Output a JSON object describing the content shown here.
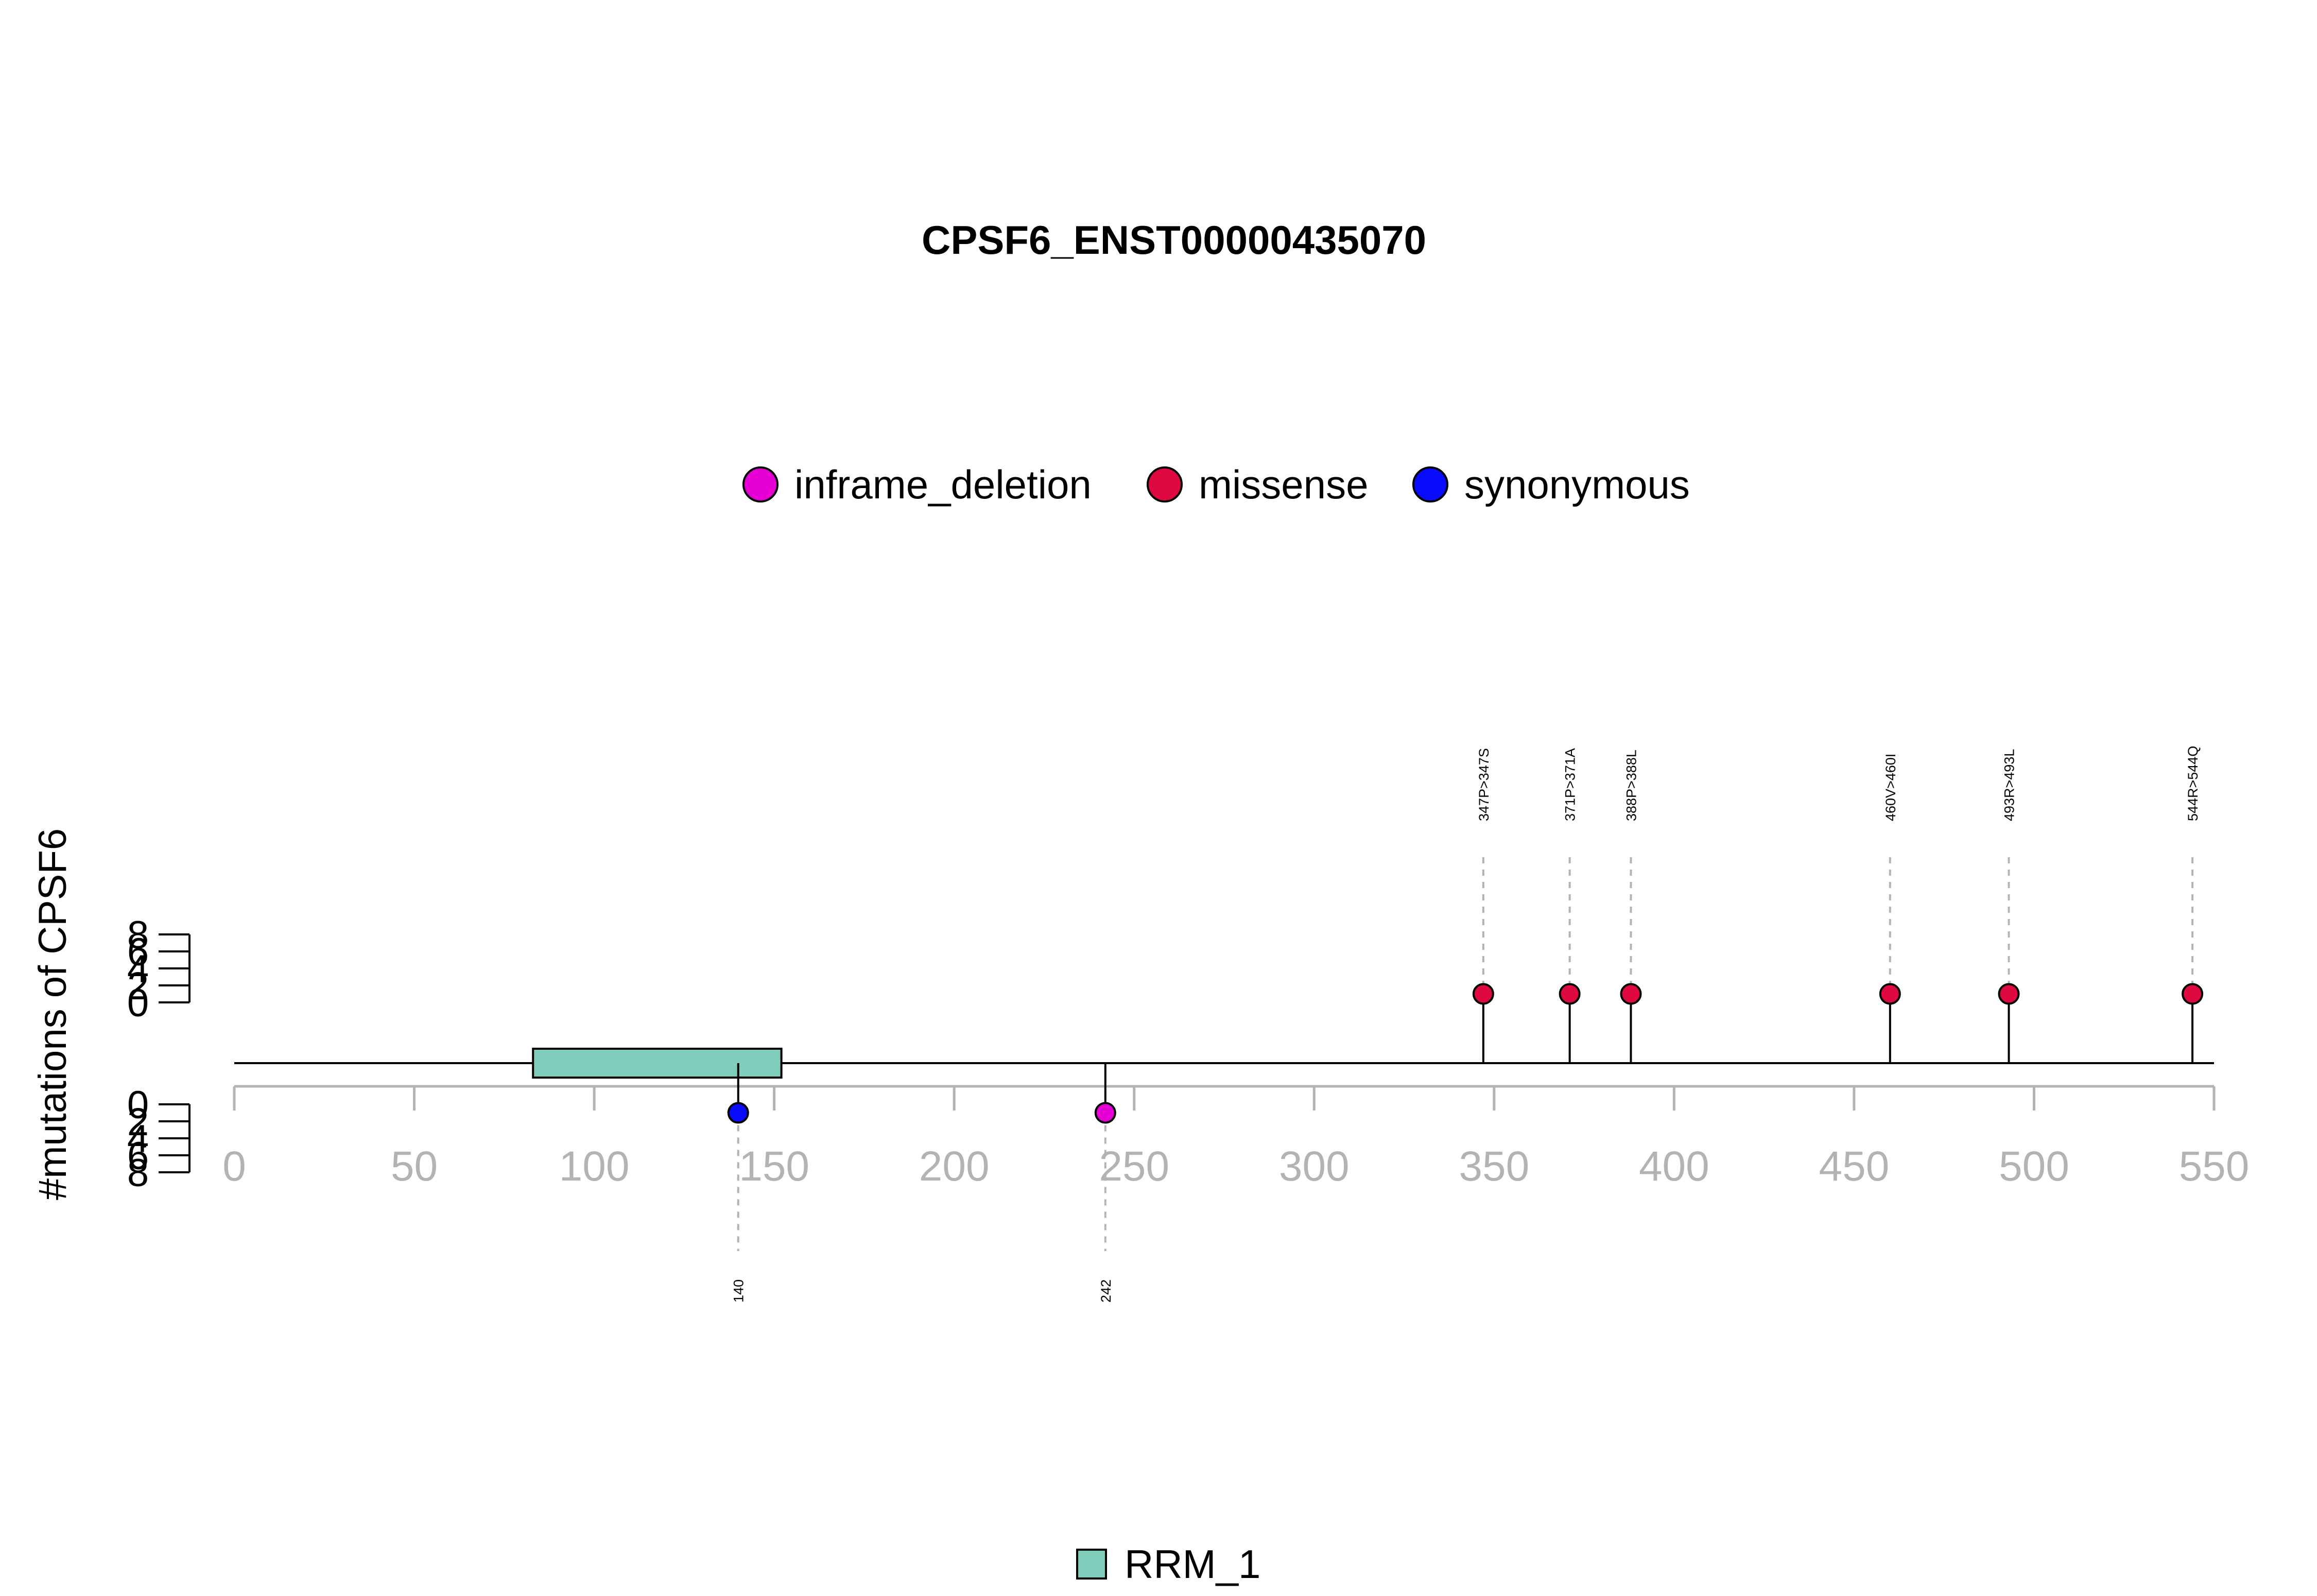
{
  "chart_data": {
    "type": "lollipop",
    "title": "CPSF6_ENST00000435070",
    "ylabel": "#mutations of CPSF6",
    "xlim": [
      0,
      550
    ],
    "x_ticks": [
      0,
      50,
      100,
      150,
      200,
      250,
      300,
      350,
      400,
      450,
      500,
      550
    ],
    "y_ticks": [
      0,
      2,
      4,
      6,
      8
    ],
    "ylim": [
      0,
      8
    ],
    "legend_mutation_types": [
      {
        "name": "inframe_deletion",
        "color": "#e600d6"
      },
      {
        "name": "missense",
        "color": "#e0093f"
      },
      {
        "name": "synonymous",
        "color": "#0a0aff"
      }
    ],
    "domains": [
      {
        "name": "RRM_1",
        "start": 83,
        "end": 152,
        "color": "#7fcdbb"
      }
    ],
    "mutations": [
      {
        "position": 347,
        "label": "347P>347S",
        "type": "missense",
        "count": 1,
        "side": "top"
      },
      {
        "position": 371,
        "label": "371P>371A",
        "type": "missense",
        "count": 1,
        "side": "top"
      },
      {
        "position": 388,
        "label": "388P>388L",
        "type": "missense",
        "count": 1,
        "side": "top"
      },
      {
        "position": 460,
        "label": "460V>460I",
        "type": "missense",
        "count": 1,
        "side": "top"
      },
      {
        "position": 493,
        "label": "493R>493L",
        "type": "missense",
        "count": 1,
        "side": "top"
      },
      {
        "position": 544,
        "label": "544R>544Q",
        "type": "missense",
        "count": 1,
        "side": "top"
      },
      {
        "position": 140,
        "label": "140",
        "type": "synonymous",
        "count": 1,
        "side": "bottom"
      },
      {
        "position": 242,
        "label": "242",
        "type": "inframe_deletion",
        "count": 1,
        "side": "bottom"
      }
    ]
  }
}
